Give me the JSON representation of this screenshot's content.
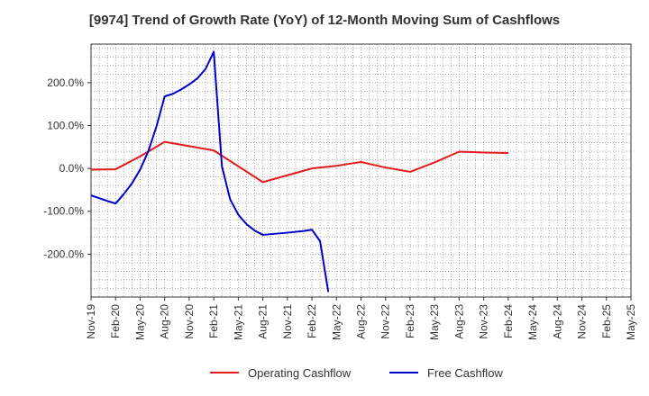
{
  "chart_data": {
    "type": "line",
    "title": "[9974]  Trend of Growth Rate (YoY) of 12-Month Moving Sum of Cashflows",
    "xlabel": "",
    "ylabel": "",
    "ylim": [
      -300,
      290
    ],
    "y_ticks": [
      200,
      100,
      0,
      -100,
      -200
    ],
    "y_tick_labels": [
      "200.0%",
      "100.0%",
      "0.0%",
      "-100.0%",
      "-200.0%"
    ],
    "x_tick_labels": [
      "Nov-19",
      "Feb-20",
      "May-20",
      "Aug-20",
      "Nov-20",
      "Feb-21",
      "May-21",
      "Aug-21",
      "Nov-21",
      "Feb-22",
      "May-22",
      "Aug-22",
      "Nov-22",
      "Feb-23",
      "May-23",
      "Aug-23",
      "Nov-23",
      "Feb-24",
      "May-24",
      "Aug-24",
      "Nov-24",
      "Feb-25",
      "May-25"
    ],
    "x_range": [
      "2019-11",
      "2025-05"
    ],
    "grid": true,
    "legend_position": "bottom",
    "series": [
      {
        "name": "Operating Cashflow",
        "color": "#e31a1c",
        "points": [
          [
            "2019-11",
            -3
          ],
          [
            "2020-02",
            -2
          ],
          [
            "2020-05",
            28
          ],
          [
            "2020-08",
            62
          ],
          [
            "2020-11",
            52
          ],
          [
            "2021-02",
            42
          ],
          [
            "2021-05",
            5
          ],
          [
            "2021-08",
            -32
          ],
          [
            "2021-11",
            -16
          ],
          [
            "2022-02",
            0
          ],
          [
            "2022-05",
            6
          ],
          [
            "2022-08",
            15
          ],
          [
            "2022-11",
            2
          ],
          [
            "2023-02",
            -8
          ],
          [
            "2023-05",
            14
          ],
          [
            "2023-08",
            39
          ],
          [
            "2023-11",
            37
          ],
          [
            "2024-02",
            36
          ]
        ]
      },
      {
        "name": "Free Cashflow",
        "color": "#0000cc",
        "points": [
          [
            "2019-11",
            -63
          ],
          [
            "2020-01",
            -76
          ],
          [
            "2020-02",
            -82
          ],
          [
            "2020-03",
            -60
          ],
          [
            "2020-04",
            -35
          ],
          [
            "2020-05",
            -3
          ],
          [
            "2020-06",
            40
          ],
          [
            "2020-07",
            98
          ],
          [
            "2020-08",
            168
          ],
          [
            "2020-09",
            174
          ],
          [
            "2020-10",
            184
          ],
          [
            "2020-11",
            196
          ],
          [
            "2020-12",
            210
          ],
          [
            "2021-01",
            232
          ],
          [
            "2021-02",
            272
          ],
          [
            "2021-03",
            5
          ],
          [
            "2021-04",
            -72
          ],
          [
            "2021-05",
            -108
          ],
          [
            "2021-06",
            -130
          ],
          [
            "2021-07",
            -145
          ],
          [
            "2021-08",
            -155
          ],
          [
            "2021-11",
            -150
          ],
          [
            "2022-01",
            -146
          ],
          [
            "2022-02",
            -143
          ],
          [
            "2022-03",
            -170
          ],
          [
            "2022-04",
            -288
          ]
        ]
      }
    ]
  }
}
